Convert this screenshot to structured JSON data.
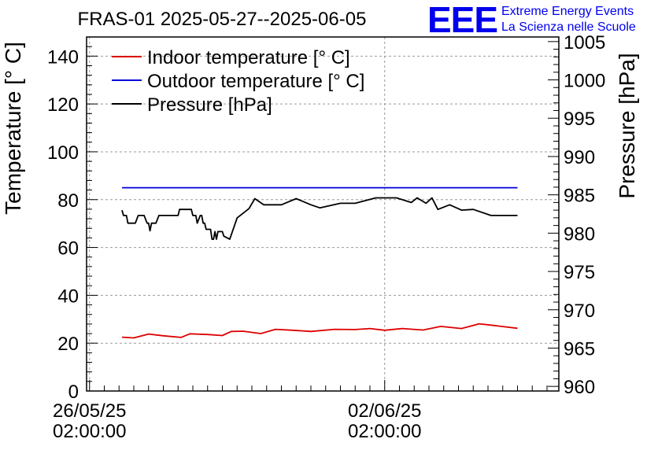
{
  "chart_data": {
    "type": "line",
    "title": "FRAS-01 2025-05-27--2025-06-05",
    "ylabel": "Temperature [° C]",
    "y2label": "Pressure [hPa]",
    "ylim": [
      0,
      148
    ],
    "y2lim": [
      959.4,
      1005.6
    ],
    "yticks": [
      0,
      20,
      40,
      60,
      80,
      100,
      120,
      140
    ],
    "y2ticks": [
      960,
      965,
      970,
      975,
      980,
      985,
      990,
      995,
      1000,
      1005
    ],
    "xlim": [
      -0.1,
      15.9
    ],
    "xticks": [
      {
        "x": 0,
        "line1": "26/05/25",
        "line2": "02:00:00"
      },
      {
        "x": 10,
        "line1": "02/06/25",
        "line2": "02:00:00"
      }
    ],
    "grid": true,
    "logo": {
      "text": "EEE",
      "line1": "Extreme Energy Events",
      "line2": "La Scienza nelle Scuole"
    },
    "legend_position": "top-left",
    "series": [
      {
        "name": "Indoor temperature [° C]",
        "axis": "left",
        "color": "#dd0000",
        "x": [
          1.1,
          1.5,
          2.0,
          2.5,
          3.1,
          3.4,
          4.0,
          4.5,
          4.8,
          5.2,
          5.8,
          6.3,
          6.9,
          7.5,
          8.3,
          9.0,
          9.5,
          10.0,
          10.6,
          11.3,
          11.9,
          12.6,
          13.2,
          13.7,
          14.5
        ],
        "y": [
          22.5,
          22.2,
          23.8,
          23.1,
          22.4,
          23.9,
          23.6,
          23.2,
          24.9,
          25.0,
          24.0,
          25.8,
          25.4,
          24.9,
          25.8,
          25.7,
          26.1,
          25.4,
          26.1,
          25.5,
          27.0,
          26.1,
          28.1,
          27.4,
          26.2
        ]
      },
      {
        "name": "Outdoor temperature [° C]",
        "axis": "left",
        "color": "#0000dd",
        "x": [
          1.1,
          14.5
        ],
        "y": [
          85.0,
          85.0
        ]
      },
      {
        "name": "Pressure [hPa]",
        "axis": "right",
        "color": "#000000",
        "x": [
          1.1,
          1.15,
          1.25,
          1.3,
          1.55,
          1.65,
          1.85,
          1.95,
          2.0,
          2.05,
          2.1,
          2.25,
          2.35,
          2.45,
          2.5,
          3.0,
          3.05,
          3.45,
          3.5,
          3.6,
          3.65,
          3.75,
          3.8,
          3.85,
          3.9,
          3.95,
          4.1,
          4.15,
          4.2,
          4.25,
          4.3,
          4.35,
          4.4,
          4.5,
          4.55,
          4.75,
          5.0,
          5.4,
          5.6,
          5.9,
          6.0,
          6.5,
          7.0,
          7.5,
          7.8,
          8.5,
          9.0,
          9.7,
          10.4,
          10.9,
          11.1,
          11.4,
          11.6,
          11.8,
          12.2,
          12.6,
          13.0,
          13.6,
          14.0,
          14.5
        ],
        "y": [
          983.0,
          982.3,
          982.3,
          981.3,
          981.3,
          982.3,
          982.3,
          981.3,
          981.3,
          980.3,
          981.3,
          981.3,
          982.3,
          982.3,
          982.3,
          982.3,
          983.1,
          983.1,
          982.3,
          982.3,
          981.3,
          982.3,
          982.3,
          981.3,
          981.3,
          980.5,
          980.5,
          979.2,
          979.2,
          980.2,
          979.2,
          980.2,
          980.2,
          980.2,
          979.6,
          979.2,
          982.0,
          983.2,
          984.5,
          983.7,
          983.7,
          983.7,
          984.5,
          983.7,
          983.3,
          983.9,
          983.9,
          984.6,
          984.6,
          984.0,
          984.6,
          983.9,
          984.6,
          983.1,
          983.7,
          983.0,
          983.1,
          982.3,
          982.3,
          982.3
        ]
      }
    ]
  }
}
